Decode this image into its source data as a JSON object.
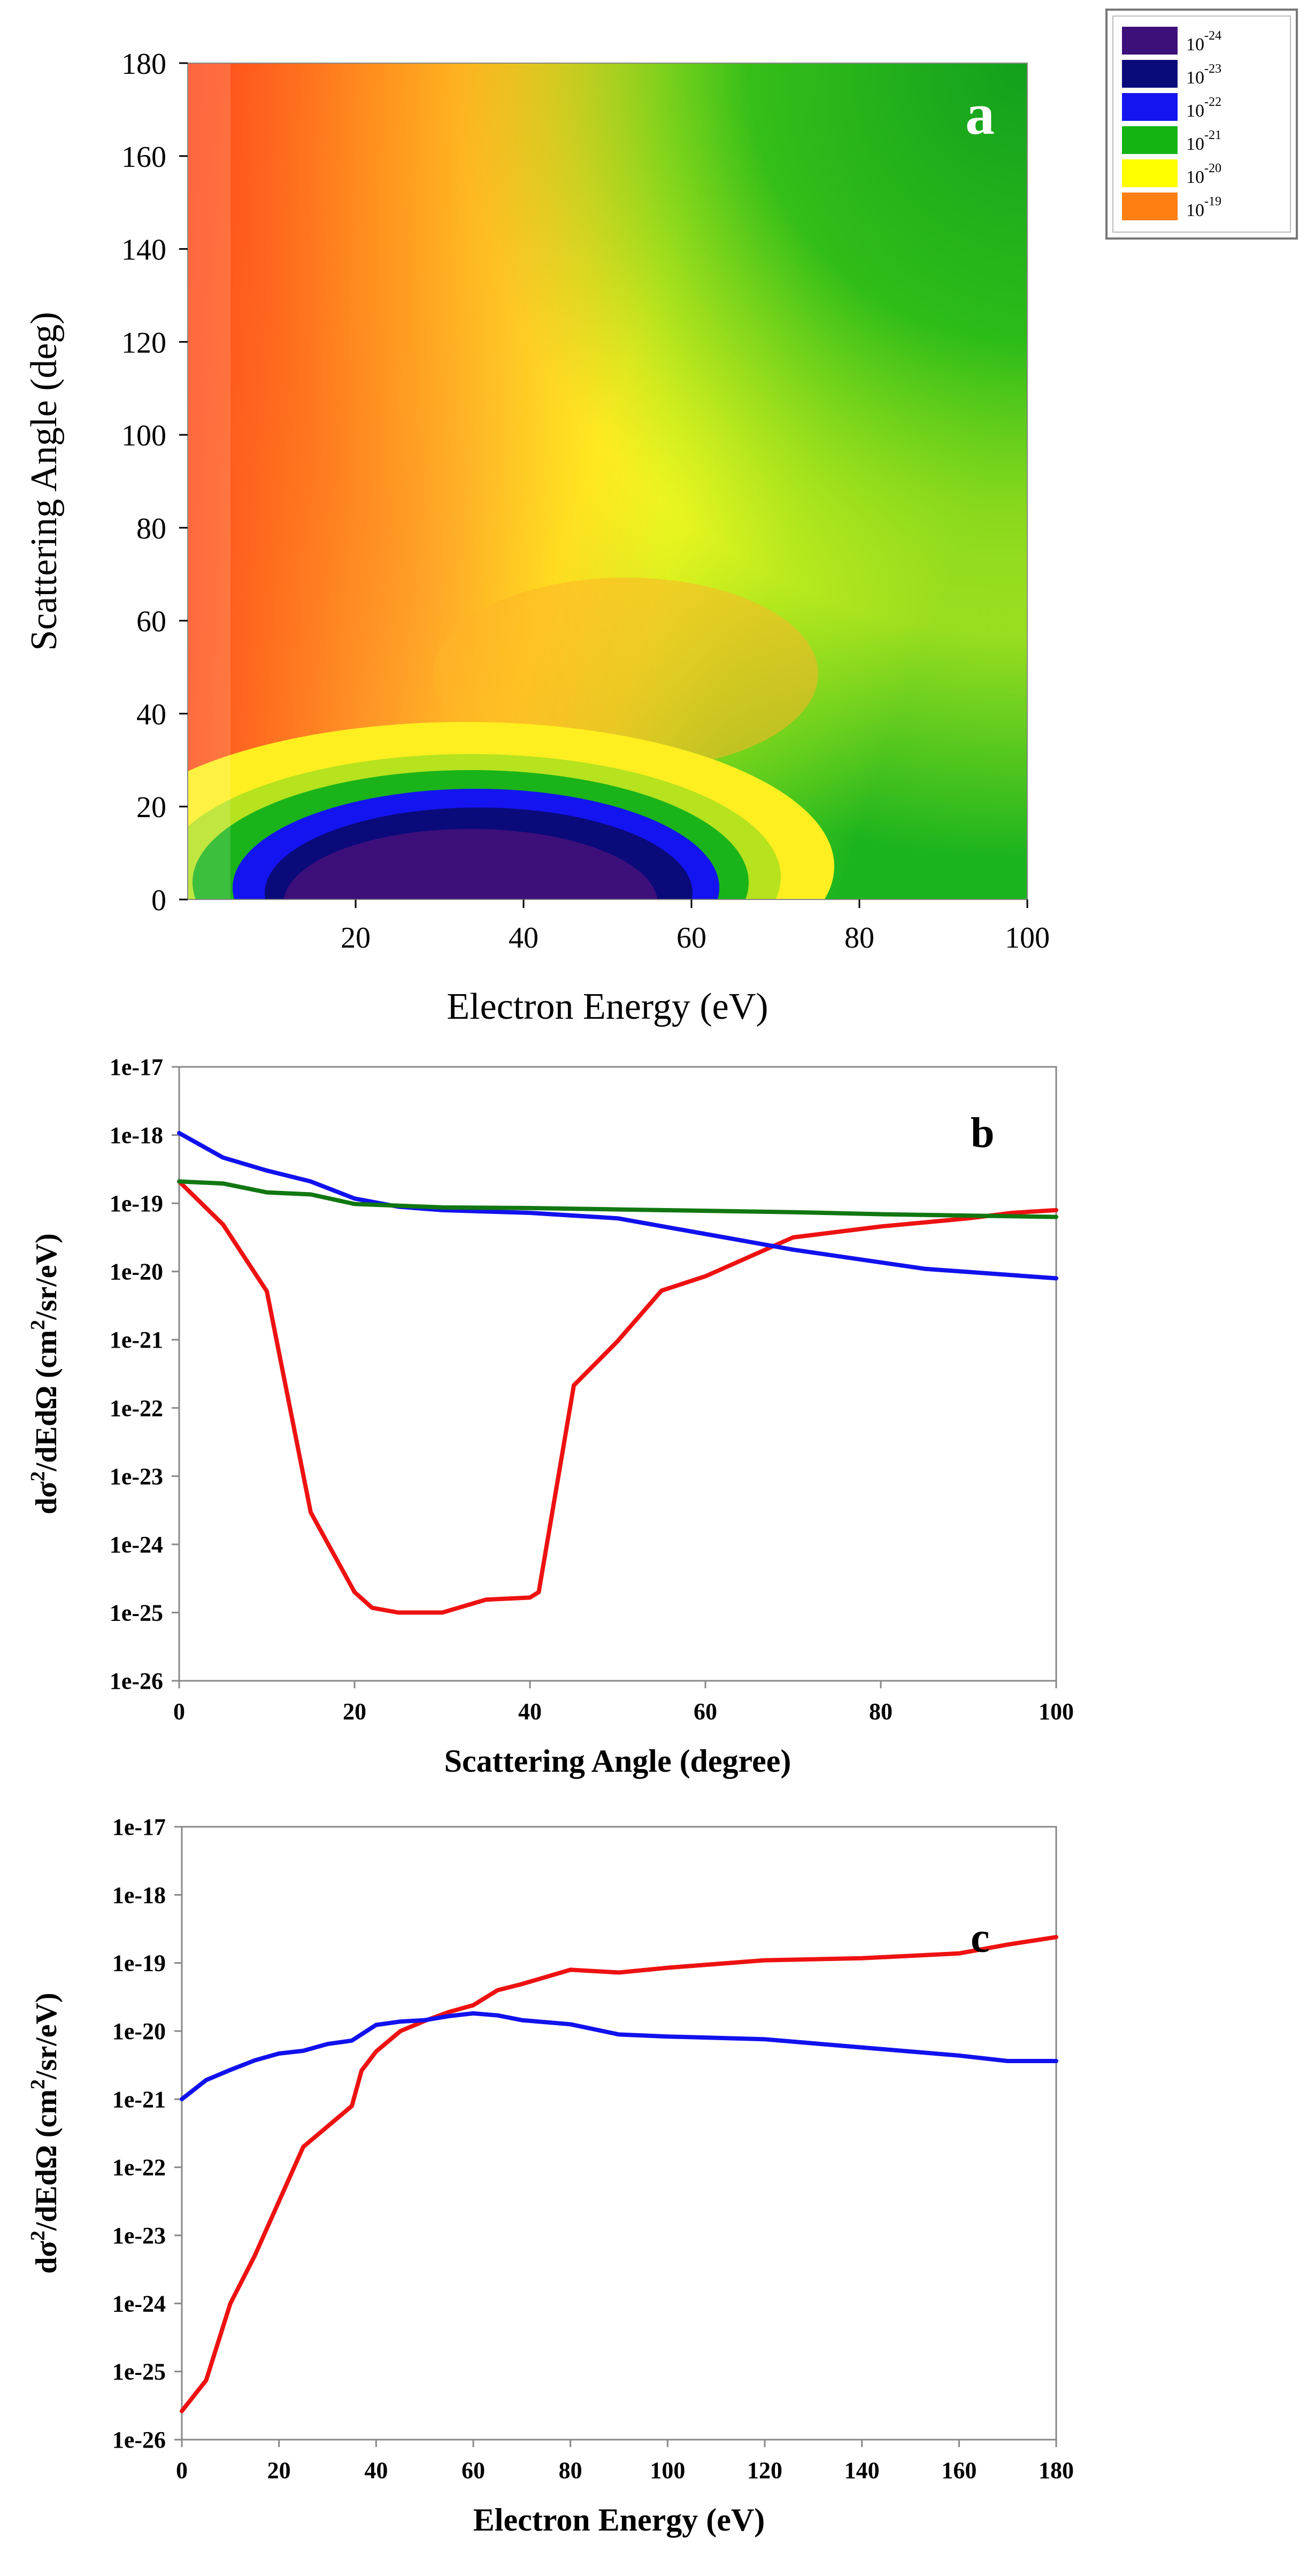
{
  "chart_data": [
    {
      "type": "heatmap",
      "panel_label": "a",
      "xlabel": "Electron Energy (eV)",
      "ylabel": "Scattering Angle (deg)",
      "xlim": [
        0,
        100
      ],
      "ylim": [
        0,
        180
      ],
      "x_ticks": [
        "20",
        "40",
        "60",
        "80",
        "100"
      ],
      "y_ticks": [
        "0",
        "20",
        "40",
        "60",
        "80",
        "100",
        "120",
        "140",
        "160",
        "180"
      ],
      "legend": [
        {
          "label": "10",
          "exp": "-24",
          "color": "#3d0f7a"
        },
        {
          "label": "10",
          "exp": "-23",
          "color": "#0a0a7a"
        },
        {
          "label": "10",
          "exp": "-22",
          "color": "#1414f0"
        },
        {
          "label": "10",
          "exp": "-21",
          "color": "#14b414"
        },
        {
          "label": "10",
          "exp": "-20",
          "color": "#ffff00"
        },
        {
          "label": "10",
          "exp": "-19",
          "color": "#ff7f14"
        }
      ],
      "legend_position": "top-right"
    },
    {
      "type": "line",
      "panel_label": "b",
      "xlabel": "Scattering Angle (degree)",
      "ylabel_base": "dσ",
      "ylabel_sup1": "2",
      "ylabel_mid": "/dEdΩ (cm",
      "ylabel_sup2": "2",
      "ylabel_end": "/sr/eV)",
      "xlim": [
        0,
        100
      ],
      "ylim_exp": [
        -26,
        -17
      ],
      "x_ticks": [
        "0",
        "20",
        "40",
        "60",
        "80",
        "100"
      ],
      "y_ticks": [
        "1e-26",
        "1e-25",
        "1e-24",
        "1e-23",
        "1e-22",
        "1e-21",
        "1e-20",
        "1e-19",
        "1e-18",
        "1e-17"
      ],
      "series": [
        {
          "name": "red",
          "color": "#ee1111",
          "x": [
            0,
            5,
            10,
            15,
            20,
            22,
            25,
            30,
            35,
            40,
            41,
            45,
            50,
            55,
            60,
            70,
            80,
            90,
            95,
            100
          ],
          "y": [
            -18.68,
            -19.31,
            -20.29,
            -23.53,
            -24.7,
            -24.93,
            -25.0,
            -25.0,
            -24.81,
            -24.78,
            -24.7,
            -21.67,
            -21.02,
            -20.28,
            -20.07,
            -19.5,
            -19.34,
            -19.22,
            -19.14,
            -19.1
          ]
        },
        {
          "name": "blue",
          "color": "#1111ee",
          "x": [
            0,
            5,
            10,
            15,
            20,
            25,
            30,
            40,
            50,
            60,
            70,
            85,
            100
          ],
          "y": [
            -17.97,
            -18.33,
            -18.52,
            -18.68,
            -18.93,
            -19.05,
            -19.1,
            -19.14,
            -19.22,
            -19.45,
            -19.68,
            -19.96,
            -20.1
          ]
        },
        {
          "name": "green",
          "color": "#117711",
          "x": [
            0,
            5,
            10,
            15,
            20,
            30,
            40,
            50,
            60,
            70,
            80,
            90,
            100
          ],
          "y": [
            -18.68,
            -18.71,
            -18.84,
            -18.87,
            -19.01,
            -19.06,
            -19.07,
            -19.09,
            -19.11,
            -19.13,
            -19.16,
            -19.18,
            -19.2
          ]
        }
      ]
    },
    {
      "type": "line",
      "panel_label": "c",
      "xlabel": "Electron Energy (eV)",
      "ylabel_base": "dσ",
      "ylabel_sup1": "2",
      "ylabel_mid": "/dEdΩ (cm",
      "ylabel_sup2": "2",
      "ylabel_end": "/sr/eV)",
      "xlim": [
        0,
        180
      ],
      "ylim_exp": [
        -26,
        -17
      ],
      "x_ticks": [
        "0",
        "20",
        "40",
        "60",
        "80",
        "100",
        "120",
        "140",
        "160",
        "180"
      ],
      "y_ticks": [
        "1e-26",
        "1e-25",
        "1e-24",
        "1e-23",
        "1e-22",
        "1e-21",
        "1e-20",
        "1e-19",
        "1e-18",
        "1e-17"
      ],
      "series": [
        {
          "name": "red",
          "color": "#ee1111",
          "x": [
            0,
            5,
            10,
            15,
            20,
            25,
            30,
            35,
            37,
            40,
            45,
            50,
            55,
            60,
            65,
            70,
            80,
            90,
            100,
            120,
            140,
            160,
            170,
            180
          ],
          "y": [
            -25.58,
            -25.13,
            -24.0,
            -23.3,
            -22.5,
            -21.7,
            -21.4,
            -21.1,
            -20.58,
            -20.3,
            -20.0,
            -19.85,
            -19.72,
            -19.62,
            -19.4,
            -19.31,
            -19.1,
            -19.14,
            -19.07,
            -18.96,
            -18.93,
            -18.86,
            -18.73,
            -18.62
          ]
        },
        {
          "name": "blue",
          "color": "#1111ee",
          "x": [
            0,
            5,
            10,
            15,
            20,
            25,
            30,
            35,
            40,
            45,
            50,
            55,
            60,
            65,
            70,
            80,
            90,
            100,
            120,
            140,
            160,
            170,
            180
          ],
          "y": [
            -21.0,
            -20.72,
            -20.57,
            -20.43,
            -20.33,
            -20.29,
            -20.19,
            -20.14,
            -19.91,
            -19.86,
            -19.84,
            -19.78,
            -19.74,
            -19.77,
            -19.84,
            -19.9,
            -20.05,
            -20.08,
            -20.12,
            -20.24,
            -20.36,
            -20.44,
            -20.44
          ]
        }
      ]
    }
  ]
}
